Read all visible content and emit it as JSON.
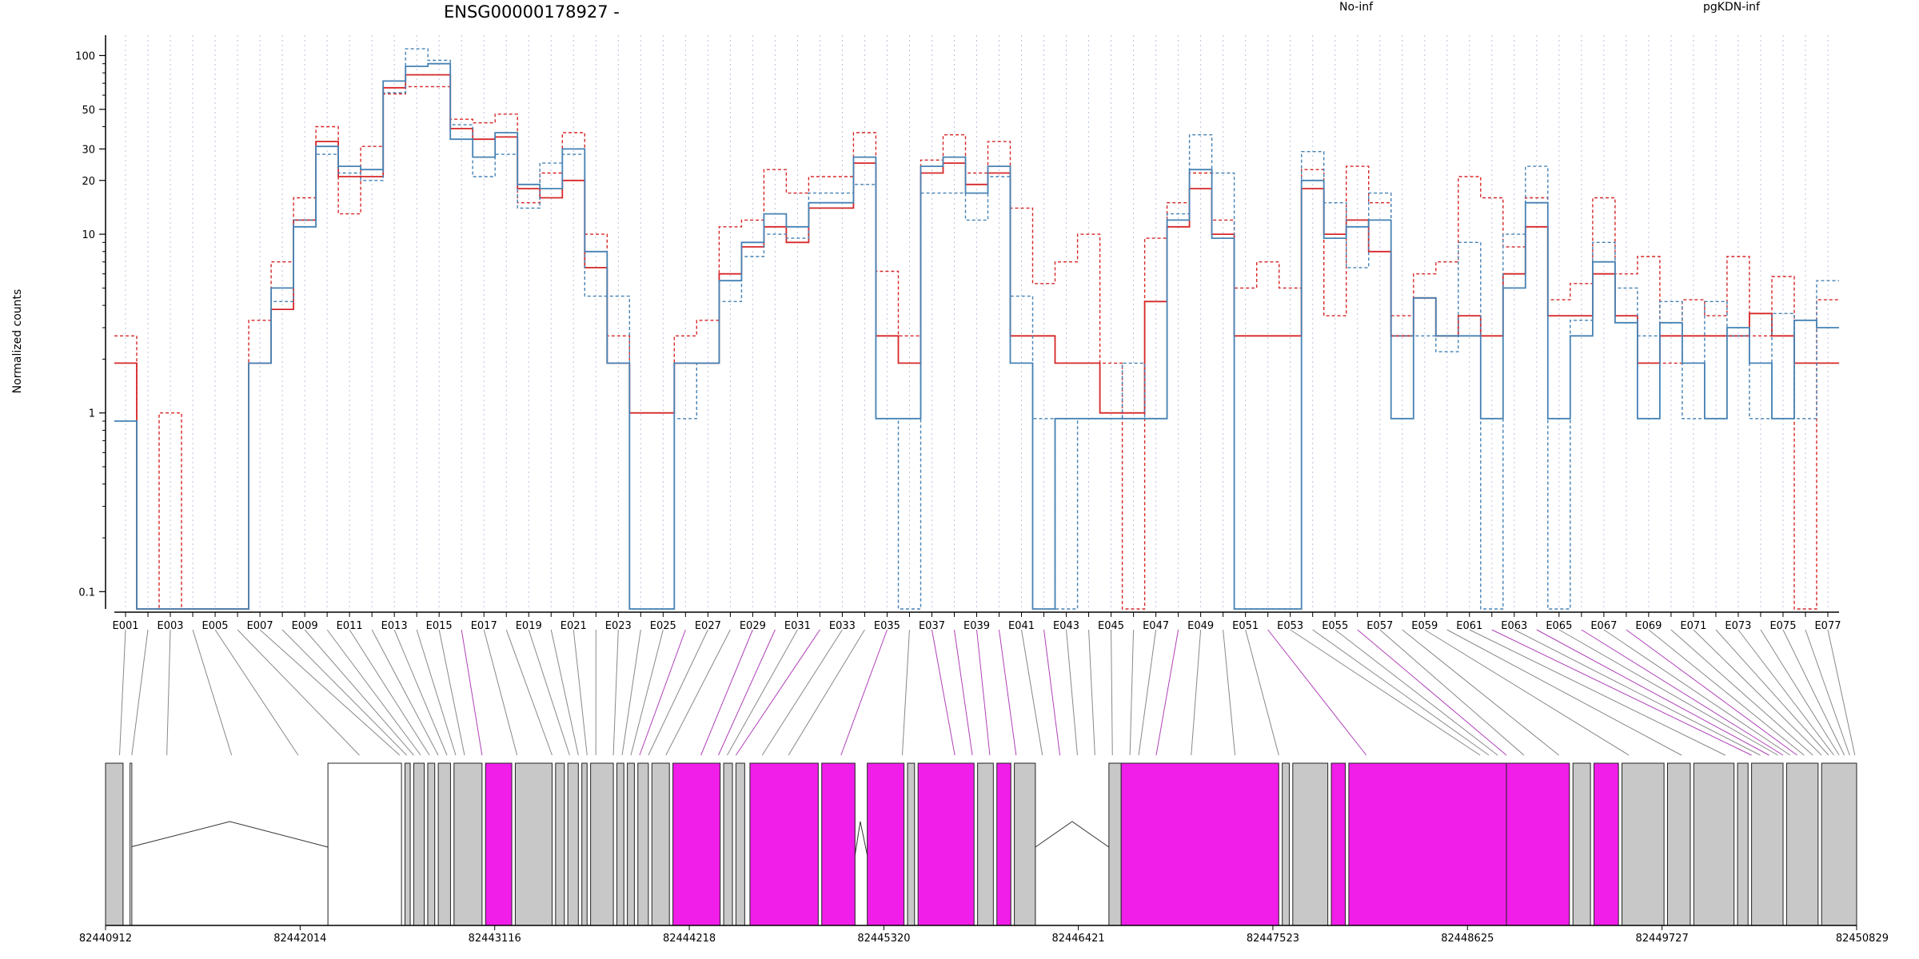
{
  "chart_data": {
    "type": "line",
    "title": "ENSG00000178927 -",
    "ylabel": "Normalized counts",
    "xlabel": "",
    "y_scale": "log",
    "ylim": [
      0.08,
      130
    ],
    "y_ticks": [
      0.1,
      1,
      10,
      20,
      30,
      50,
      100
    ],
    "y_tick_labels": [
      "0.1",
      "1",
      "10",
      "20",
      "30",
      "50",
      "100"
    ],
    "grid": "vertical dotted lines at each exon",
    "legend_placement": "top",
    "colors": {
      "No-inf": "#d62728",
      "pgKDN-inf": "#4682b4",
      "highlight_exon": "#f01ee8",
      "normal_exon": "#c8c8c8"
    },
    "exons": [
      "E001",
      "E002",
      "E003",
      "E004",
      "E005",
      "E006",
      "E007",
      "E008",
      "E009",
      "E010",
      "E011",
      "E012",
      "E013",
      "E014",
      "E015",
      "E016",
      "E017",
      "E018",
      "E019",
      "E020",
      "E021",
      "E022",
      "E023",
      "E024",
      "E025",
      "E026",
      "E027",
      "E028",
      "E029",
      "E030",
      "E031",
      "E032",
      "E033",
      "E034",
      "E035",
      "E036",
      "E037",
      "E038",
      "E039",
      "E040",
      "E041",
      "E042",
      "E043",
      "E044",
      "E045",
      "E046",
      "E047",
      "E048",
      "E049",
      "E050",
      "E051",
      "E052",
      "E053",
      "E054",
      "E055",
      "E056",
      "E057",
      "E058",
      "E059",
      "E060",
      "E061",
      "E062",
      "E063",
      "E064",
      "E065",
      "E066",
      "E067",
      "E068",
      "E069",
      "E070",
      "E071",
      "E072",
      "E073",
      "E074",
      "E075",
      "E076",
      "E077"
    ],
    "x_tick_labels": [
      "E001",
      "E003",
      "E005",
      "E007",
      "E009",
      "E011",
      "E013",
      "E015",
      "E017",
      "E019",
      "E021",
      "E023",
      "E025",
      "E027",
      "E029",
      "E031",
      "E033",
      "E035",
      "E037",
      "E039",
      "E041",
      "E043",
      "E045",
      "E047",
      "E049",
      "E051",
      "E053",
      "E055",
      "E057",
      "E059",
      "E061",
      "E063",
      "E065",
      "E067",
      "E069",
      "E071",
      "E073",
      "E075",
      "E077"
    ],
    "differential_exons": [
      "E016",
      "E026",
      "E029",
      "E030",
      "E032",
      "E035",
      "E037",
      "E038",
      "E039",
      "E040",
      "E042",
      "E048",
      "E052",
      "E056",
      "E062",
      "E064",
      "E066",
      "E068"
    ],
    "series": [
      {
        "name": "No-inf",
        "style": "solid",
        "values": [
          1.9,
          0.07,
          0.07,
          0.07,
          0.07,
          0.07,
          1.9,
          3.8,
          12,
          33,
          21,
          21,
          66,
          78,
          78,
          39,
          34,
          35,
          18,
          16,
          20,
          6.5,
          1.9,
          1.0,
          1.0,
          1.9,
          1.9,
          6.0,
          8.5,
          11,
          9,
          14,
          14,
          25,
          2.7,
          1.9,
          22,
          25,
          19,
          22,
          2.7,
          2.7,
          1.9,
          1.9,
          1.0,
          1.0,
          4.2,
          11,
          18,
          10,
          2.7,
          2.7,
          2.7,
          18,
          10,
          12,
          8,
          2.7,
          4.4,
          2.7,
          3.5,
          2.7,
          6,
          11,
          3.5,
          3.5,
          6,
          3.5,
          1.9,
          2.7,
          2.7,
          2.7,
          2.7,
          3.6,
          2.7,
          1.9,
          1.9
        ]
      },
      {
        "name": "No-inf",
        "style": "dashed",
        "values": [
          2.7,
          0.07,
          1.0,
          0.07,
          0.07,
          0.07,
          3.3,
          7.0,
          16,
          40,
          13,
          31,
          61,
          67,
          67,
          44,
          42,
          47,
          15,
          22,
          37,
          10,
          2.7,
          1.0,
          1.0,
          2.7,
          3.3,
          11,
          12,
          23,
          17,
          21,
          21,
          37,
          6.2,
          2.7,
          26,
          36,
          22,
          33,
          14,
          5.3,
          7.0,
          10,
          1.9,
          0.07,
          9.5,
          15,
          22,
          12,
          5.0,
          7.0,
          5.0,
          23,
          3.5,
          24,
          15,
          3.5,
          6.0,
          7.0,
          21,
          16,
          8.5,
          16,
          4.3,
          5.3,
          16,
          6.0,
          7.5,
          1.9,
          4.3,
          3.5,
          7.5,
          2.7,
          5.8,
          0.07,
          4.3
        ]
      },
      {
        "name": "pgKDN-inf",
        "style": "solid",
        "values": [
          0.9,
          0.07,
          0.07,
          0.07,
          0.07,
          0.07,
          1.9,
          5.0,
          11,
          31,
          24,
          23,
          72,
          87,
          90,
          34,
          27,
          37,
          19,
          18,
          30,
          8.0,
          1.9,
          0.07,
          0.07,
          1.9,
          1.9,
          5.5,
          9.0,
          13,
          11,
          15,
          15,
          27,
          0.93,
          0.93,
          24,
          27,
          17,
          24,
          1.9,
          0.07,
          0.93,
          0.93,
          0.93,
          0.93,
          0.93,
          12,
          23,
          9.5,
          0.07,
          0.07,
          0.07,
          20,
          9.5,
          11,
          12,
          0.93,
          4.4,
          2.7,
          2.7,
          0.93,
          5.0,
          15,
          0.93,
          2.7,
          7.0,
          3.2,
          0.93,
          3.2,
          1.9,
          0.93,
          3.0,
          1.9,
          0.93,
          3.3,
          3.0
        ]
      },
      {
        "name": "pgKDN-inf",
        "style": "dashed",
        "values": [
          0.9,
          0.07,
          0.07,
          0.07,
          0.07,
          0.07,
          1.9,
          4.2,
          12,
          28,
          22,
          20,
          62,
          109,
          94,
          41,
          21,
          28,
          14,
          25,
          28,
          4.5,
          4.5,
          0.07,
          0.07,
          0.93,
          1.9,
          4.2,
          7.5,
          10,
          9.5,
          17,
          17,
          19,
          0.93,
          0.07,
          17,
          17,
          12,
          21,
          4.5,
          0.93,
          0.07,
          0.93,
          0.93,
          1.9,
          0.93,
          13,
          36,
          22,
          0.07,
          0.07,
          0.07,
          29,
          15,
          6.5,
          17,
          2.7,
          2.7,
          2.2,
          9.0,
          0.07,
          10,
          24,
          0.07,
          3.3,
          9.0,
          5.0,
          2.7,
          4.2,
          0.93,
          4.2,
          2.7,
          0.93,
          3.6,
          0.93,
          5.5
        ]
      }
    ],
    "genomic_axis": {
      "ticks": [
        82440912,
        82442014,
        82443116,
        82444218,
        82445320,
        82446421,
        82447523,
        82448625,
        82449727,
        82450829
      ],
      "tick_labels": [
        "82440912",
        "82442014",
        "82443116",
        "82444218",
        "82445320",
        "82446421",
        "82447523",
        "82448625",
        "82449727",
        "82450829"
      ],
      "range": [
        82440912,
        82450829
      ]
    }
  }
}
